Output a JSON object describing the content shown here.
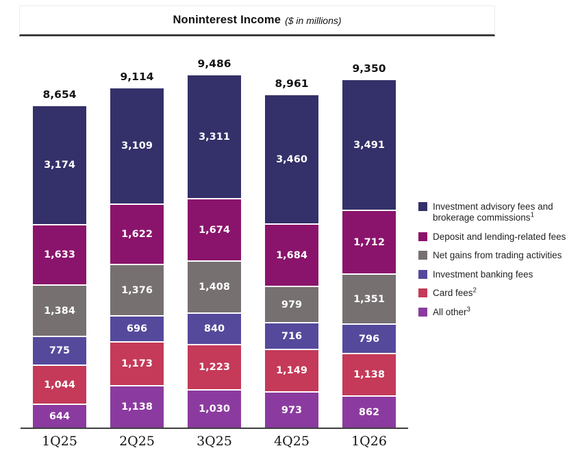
{
  "chart_data": {
    "type": "bar",
    "stacked": true,
    "title": "Noninterest Income",
    "subtitle": "($ in millions)",
    "categories": [
      "1Q25",
      "2Q25",
      "3Q25",
      "4Q25",
      "1Q26"
    ],
    "totals": [
      8654,
      9114,
      9486,
      8961,
      9350
    ],
    "series": [
      {
        "name": "All other",
        "sup": "3",
        "color": "#8b3b9f",
        "values": [
          644,
          1138,
          1030,
          973,
          862
        ]
      },
      {
        "name": "Card fees",
        "sup": "2",
        "color": "#c43a58",
        "values": [
          1044,
          1173,
          1223,
          1149,
          1138
        ]
      },
      {
        "name": "Investment banking fees",
        "sup": "",
        "color": "#55499c",
        "values": [
          775,
          696,
          840,
          716,
          796
        ]
      },
      {
        "name": "Net gains from trading activities",
        "sup": "",
        "color": "#767071",
        "values": [
          1384,
          1376,
          1408,
          979,
          1351
        ]
      },
      {
        "name": "Deposit and lending-related fees",
        "sup": "",
        "color": "#8a146b",
        "values": [
          1633,
          1622,
          1674,
          1684,
          1712
        ]
      },
      {
        "name": "Investment advisory fees and brokerage commissions",
        "sup": "1",
        "color": "#343069",
        "values": [
          3174,
          3109,
          3311,
          3460,
          3491
        ]
      }
    ],
    "legend_position": "right",
    "legend_order": "top_of_stack_first",
    "value_axis": "hidden",
    "ylim": [
      0,
      9486
    ],
    "grid": false
  }
}
